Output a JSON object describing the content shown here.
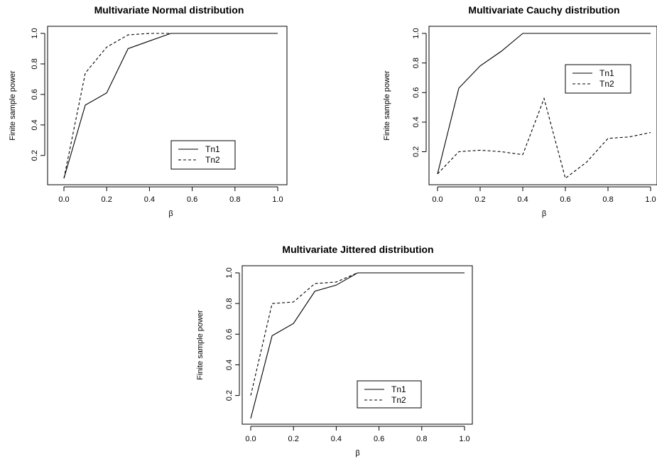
{
  "chart_data": [
    {
      "type": "line",
      "title": "Multivariate Normal distribution",
      "xlabel": "β",
      "ylabel": "Finite sample power",
      "x": [
        0.0,
        0.1,
        0.2,
        0.3,
        0.4,
        0.5,
        0.6,
        0.7,
        0.8,
        0.9,
        1.0
      ],
      "xticks": [
        "0.0",
        "0.2",
        "0.4",
        "0.6",
        "0.8",
        "1.0"
      ],
      "yticks": [
        "0.2",
        "0.4",
        "0.6",
        "0.8",
        "1.0"
      ],
      "xlim": [
        0,
        1
      ],
      "ylim": [
        0.05,
        1.0
      ],
      "legend_position": "bottom-right",
      "series": [
        {
          "name": "Tn1",
          "style": "solid",
          "values": [
            0.05,
            0.53,
            0.61,
            0.9,
            0.95,
            1.0,
            1.0,
            1.0,
            1.0,
            1.0,
            1.0
          ]
        },
        {
          "name": "Tn2",
          "style": "dashed",
          "values": [
            0.05,
            0.74,
            0.91,
            0.99,
            1.0,
            1.0,
            1.0,
            1.0,
            1.0,
            1.0,
            1.0
          ]
        }
      ]
    },
    {
      "type": "line",
      "title": "Multivariate Cauchy distribution",
      "xlabel": "β",
      "ylabel": "Finite sample power",
      "x": [
        0.0,
        0.1,
        0.2,
        0.3,
        0.4,
        0.5,
        0.6,
        0.7,
        0.8,
        0.9,
        1.0
      ],
      "xticks": [
        "0.0",
        "0.2",
        "0.4",
        "0.6",
        "0.8",
        "1.0"
      ],
      "yticks": [
        "0.2",
        "0.4",
        "0.6",
        "0.8",
        "1.0"
      ],
      "xlim": [
        0,
        1
      ],
      "ylim": [
        0.02,
        1.0
      ],
      "legend_position": "top-right",
      "series": [
        {
          "name": "Tn1",
          "style": "solid",
          "values": [
            0.05,
            0.63,
            0.78,
            0.88,
            1.0,
            1.0,
            1.0,
            1.0,
            1.0,
            1.0,
            1.0
          ]
        },
        {
          "name": "Tn2",
          "style": "dashed",
          "values": [
            0.05,
            0.2,
            0.21,
            0.2,
            0.18,
            0.56,
            0.02,
            0.13,
            0.29,
            0.3,
            0.33
          ]
        }
      ]
    },
    {
      "type": "line",
      "title": "Multivariate Jittered distribution",
      "xlabel": "β",
      "ylabel": "Finite sample power",
      "x": [
        0.0,
        0.1,
        0.2,
        0.3,
        0.4,
        0.5,
        0.6,
        0.7,
        0.8,
        0.9,
        1.0
      ],
      "xticks": [
        "0.0",
        "0.2",
        "0.4",
        "0.6",
        "0.8",
        "1.0"
      ],
      "yticks": [
        "0.2",
        "0.4",
        "0.6",
        "0.8",
        "1.0"
      ],
      "xlim": [
        0,
        1
      ],
      "ylim": [
        0.05,
        1.0
      ],
      "legend_position": "bottom-right",
      "series": [
        {
          "name": "Tn1",
          "style": "solid",
          "values": [
            0.05,
            0.59,
            0.67,
            0.88,
            0.92,
            1.0,
            1.0,
            1.0,
            1.0,
            1.0,
            1.0
          ]
        },
        {
          "name": "Tn2",
          "style": "dashed",
          "values": [
            0.2,
            0.8,
            0.81,
            0.93,
            0.94,
            1.0,
            1.0,
            1.0,
            1.0,
            1.0,
            1.0
          ]
        }
      ]
    }
  ]
}
